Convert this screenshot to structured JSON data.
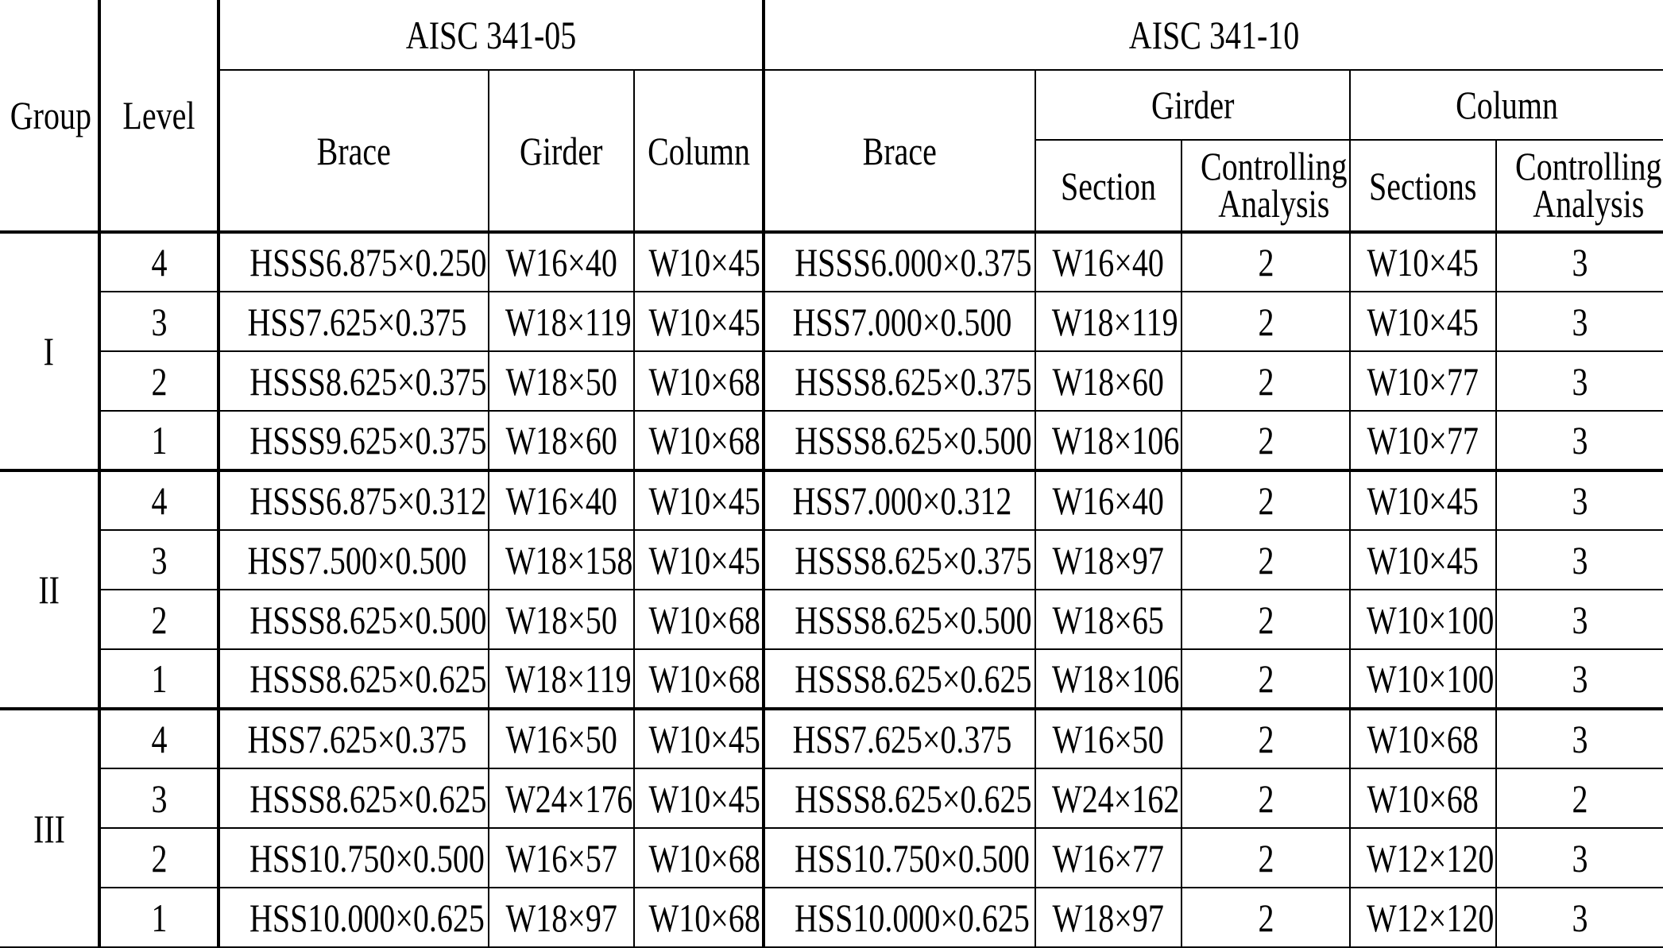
{
  "headers": {
    "group": "Group",
    "level": "Level",
    "aisc05": "AISC 341-05",
    "aisc10": "AISC 341-10",
    "brace": "Brace",
    "girder": "Girder",
    "column": "Column",
    "section": "Section",
    "controlling1": "Controlling",
    "controlling2": "Analysis",
    "sections": "Sections"
  },
  "groups": [
    {
      "name": "I",
      "rows": [
        [
          "4",
          "HSSS6.875×0.250",
          "W16×40",
          "W10×45",
          "HSSS6.000×0.375",
          "W16×40",
          "2",
          "W10×45",
          "3"
        ],
        [
          "3",
          "HSS7.625×0.375",
          "W18×119",
          "W10×45",
          "HSS7.000×0.500",
          "W18×119",
          "2",
          "W10×45",
          "3"
        ],
        [
          "2",
          "HSSS8.625×0.375",
          "W18×50",
          "W10×68",
          "HSSS8.625×0.375",
          "W18×60",
          "2",
          "W10×77",
          "3"
        ],
        [
          "1",
          "HSSS9.625×0.375",
          "W18×60",
          "W10×68",
          "HSSS8.625×0.500",
          "W18×106",
          "2",
          "W10×77",
          "3"
        ]
      ]
    },
    {
      "name": "II",
      "rows": [
        [
          "4",
          "HSSS6.875×0.312",
          "W16×40",
          "W10×45",
          "HSS7.000×0.312",
          "W16×40",
          "2",
          "W10×45",
          "3"
        ],
        [
          "3",
          "HSS7.500×0.500",
          "W18×158",
          "W10×45",
          "HSSS8.625×0.375",
          "W18×97",
          "2",
          "W10×45",
          "3"
        ],
        [
          "2",
          "HSSS8.625×0.500",
          "W18×50",
          "W10×68",
          "HSSS8.625×0.500",
          "W18×65",
          "2",
          "W10×100",
          "3"
        ],
        [
          "1",
          "HSSS8.625×0.625",
          "W18×119",
          "W10×68",
          "HSSS8.625×0.625",
          "W18×106",
          "2",
          "W10×100",
          "3"
        ]
      ]
    },
    {
      "name": "III",
      "rows": [
        [
          "4",
          "HSS7.625×0.375",
          "W16×50",
          "W10×45",
          "HSS7.625×0.375",
          "W16×50",
          "2",
          "W10×68",
          "3"
        ],
        [
          "3",
          "HSSS8.625×0.625",
          "W24×176",
          "W10×45",
          "HSSS8.625×0.625",
          "W24×162",
          "2",
          "W10×68",
          "2"
        ],
        [
          "2",
          "HSS10.750×0.500",
          "W16×57",
          "W10×68",
          "HSS10.750×0.500",
          "W16×77",
          "2",
          "W12×120",
          "3"
        ],
        [
          "1",
          "HSS10.000×0.625",
          "W18×97",
          "W10×68",
          "HSS10.000×0.625",
          "W18×97",
          "2",
          "W12×120",
          "3"
        ]
      ]
    }
  ]
}
